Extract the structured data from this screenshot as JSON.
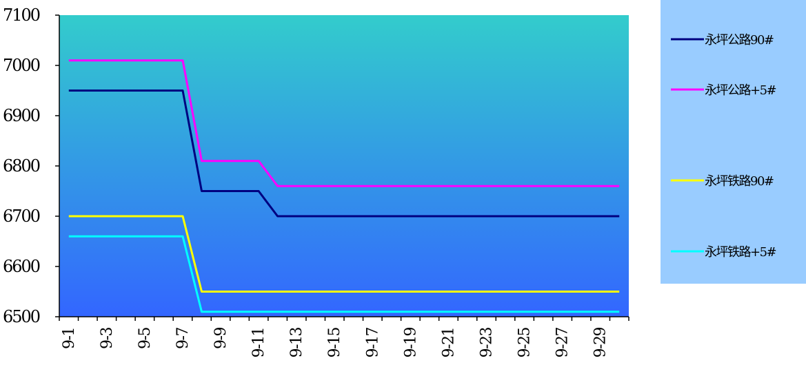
{
  "chart_data": {
    "type": "line",
    "title": "",
    "xlabel": "",
    "ylabel": "",
    "x": [
      "9-1",
      "9-2",
      "9-3",
      "9-4",
      "9-5",
      "9-6",
      "9-7",
      "9-8",
      "9-9",
      "9-10",
      "9-11",
      "9-12",
      "9-13",
      "9-14",
      "9-15",
      "9-16",
      "9-17",
      "9-18",
      "9-19",
      "9-20",
      "9-21",
      "9-22",
      "9-23",
      "9-24",
      "9-25",
      "9-26",
      "9-27",
      "9-28",
      "9-29",
      "9-30"
    ],
    "x_tick_labels": [
      "9-1",
      "9-3",
      "9-5",
      "9-7",
      "9-9",
      "9-11",
      "9-13",
      "9-15",
      "9-17",
      "9-19",
      "9-21",
      "9-23",
      "9-25",
      "9-27",
      "9-29"
    ],
    "ylim": [
      6500,
      7100
    ],
    "y_ticks": [
      6500,
      6600,
      6700,
      6800,
      6900,
      7000,
      7100
    ],
    "grid": false,
    "legend_position": "right",
    "background_gradient": [
      "#33cccc",
      "#3366ff"
    ],
    "legend_background": "#99ccff",
    "series": [
      {
        "name": "永坪公路90#",
        "color": "#000080",
        "values": [
          6950,
          6950,
          6950,
          6950,
          6950,
          6950,
          6950,
          6750,
          6750,
          6750,
          6750,
          6700,
          6700,
          6700,
          6700,
          6700,
          6700,
          6700,
          6700,
          6700,
          6700,
          6700,
          6700,
          6700,
          6700,
          6700,
          6700,
          6700,
          6700,
          6700
        ]
      },
      {
        "name": "永坪公路+5#",
        "color": "#ff00ff",
        "values": [
          7010,
          7010,
          7010,
          7010,
          7010,
          7010,
          7010,
          6810,
          6810,
          6810,
          6810,
          6760,
          6760,
          6760,
          6760,
          6760,
          6760,
          6760,
          6760,
          6760,
          6760,
          6760,
          6760,
          6760,
          6760,
          6760,
          6760,
          6760,
          6760,
          6760
        ]
      },
      {
        "name": "永坪铁路90#",
        "color": "#ffff00",
        "values": [
          6700,
          6700,
          6700,
          6700,
          6700,
          6700,
          6700,
          6550,
          6550,
          6550,
          6550,
          6550,
          6550,
          6550,
          6550,
          6550,
          6550,
          6550,
          6550,
          6550,
          6550,
          6550,
          6550,
          6550,
          6550,
          6550,
          6550,
          6550,
          6550,
          6550
        ]
      },
      {
        "name": "永坪铁路+5#",
        "color": "#00ffff",
        "values": [
          6660,
          6660,
          6660,
          6660,
          6660,
          6660,
          6660,
          6510,
          6510,
          6510,
          6510,
          6510,
          6510,
          6510,
          6510,
          6510,
          6510,
          6510,
          6510,
          6510,
          6510,
          6510,
          6510,
          6510,
          6510,
          6510,
          6510,
          6510,
          6510,
          6510
        ]
      }
    ]
  }
}
